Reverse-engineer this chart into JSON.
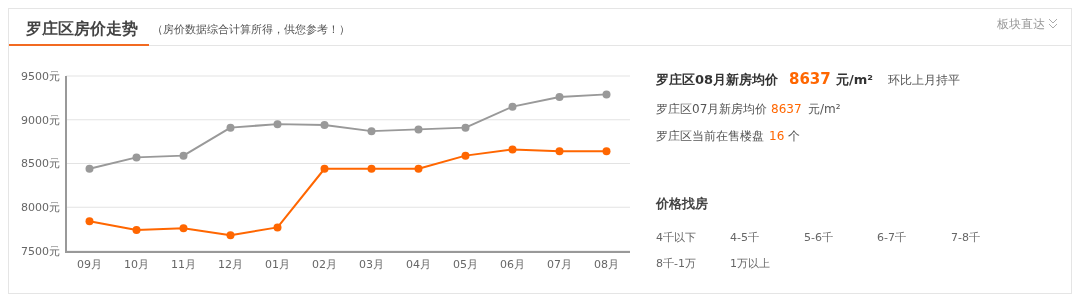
{
  "chart_data": {
    "type": "line",
    "title": "罗庄区房价走势",
    "subtitle": "（房价数据综合计算所得，供您参考！）",
    "categories": [
      "09月",
      "10月",
      "11月",
      "12月",
      "01月",
      "02月",
      "03月",
      "04月",
      "05月",
      "06月",
      "07月",
      "08月"
    ],
    "series": [
      {
        "color": "#999999",
        "values": [
          8440,
          8570,
          8590,
          8910,
          8950,
          8940,
          8870,
          8890,
          8910,
          9150,
          9260,
          9290
        ]
      },
      {
        "color": "#ff6600",
        "values": [
          7840,
          7740,
          7760,
          7680,
          7770,
          8440,
          8440,
          8440,
          8590,
          8660,
          8640,
          8640
        ]
      }
    ],
    "ylim": [
      7500,
      9500
    ],
    "yticks": [
      {
        "value": 7500,
        "label": "7500元"
      },
      {
        "value": 8000,
        "label": "8000元"
      },
      {
        "value": 8500,
        "label": "8500元"
      },
      {
        "value": 9000,
        "label": "9000元"
      },
      {
        "value": 9500,
        "label": "9500元"
      }
    ],
    "grid": "y",
    "marker": "circle",
    "line_style": "solid",
    "annotations": [
      "罗庄区08月新房均价",
      "8637",
      "元/m²",
      "环比上月持平",
      "罗庄区07月新房均价",
      "8637",
      "元/m²",
      "罗庄区当前在售楼盘",
      "16",
      "个",
      "价格找房",
      "4千以下",
      "4-5千",
      "5-6千",
      "6-7千",
      "7-8千",
      "8千-1万",
      "1万以上",
      "板块直达"
    ]
  }
}
